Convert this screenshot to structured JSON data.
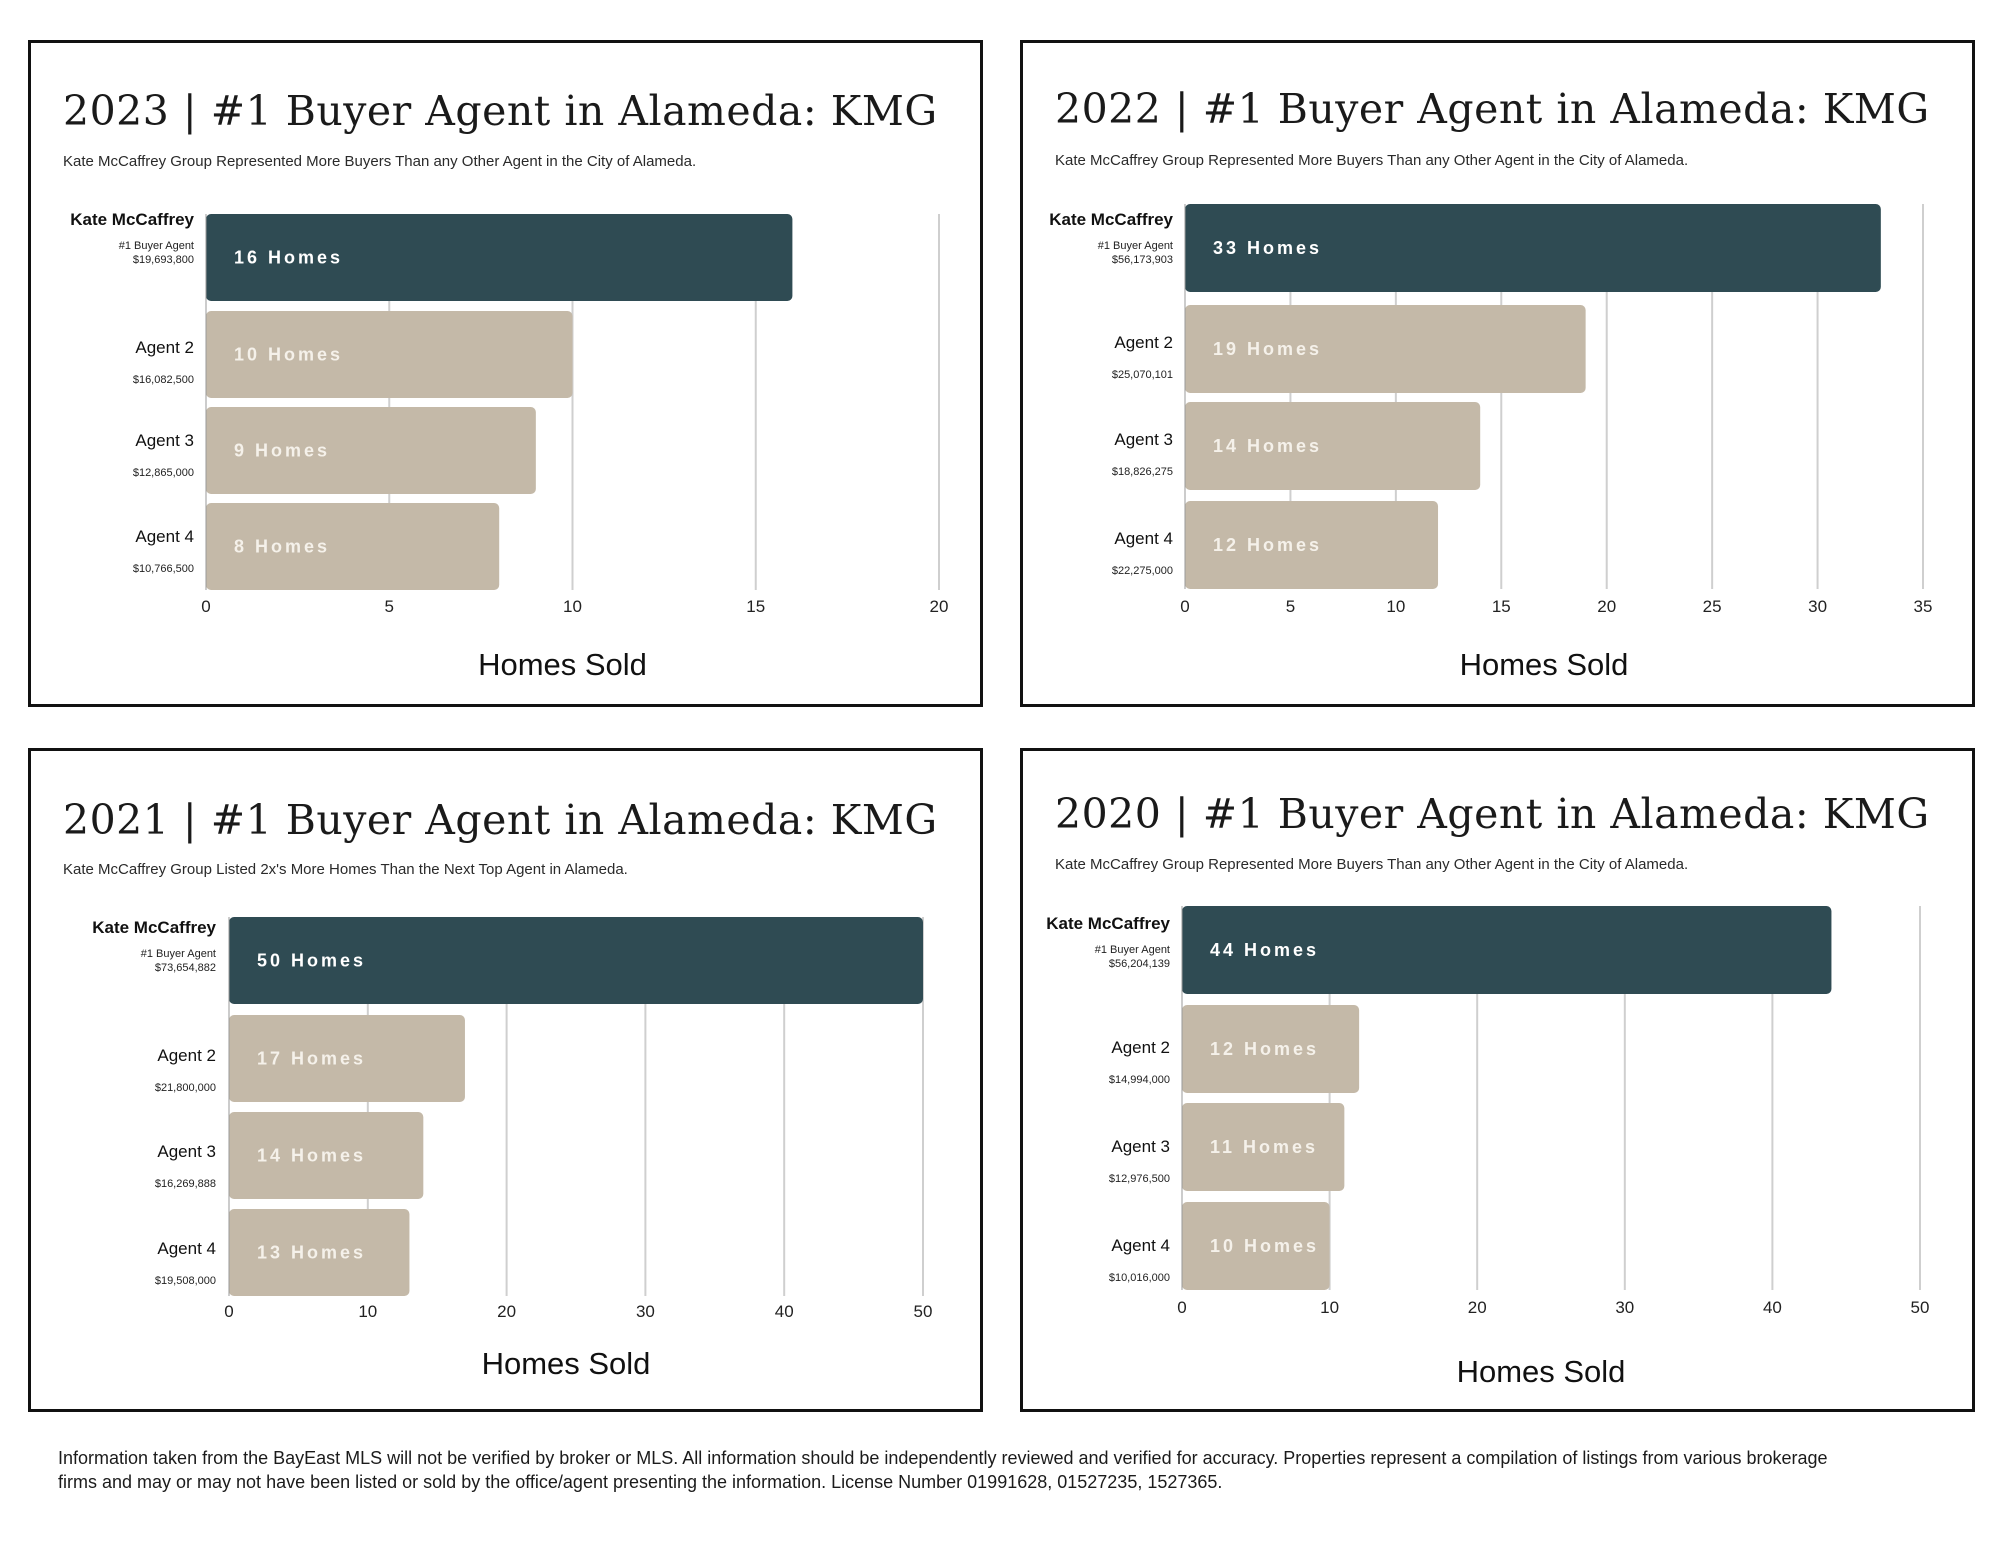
{
  "colors": {
    "top_bar": "#2f4b53",
    "other_bar": "#c4b9a8",
    "top_label": "#ffffff",
    "other_label": "#f5f1ea"
  },
  "footnote": "Information taken from the BayEast MLS will not be verified by broker or MLS. All information should be independently reviewed and verified for accuracy. Properties represent a compilation of listings from various brokerage firms and may or may not have been listed or sold by the office/agent presenting the information. License Number 01991628, 01527235, 1527365.",
  "chart_data": [
    {
      "type": "bar",
      "orientation": "horizontal",
      "title": "2023 | #1 Buyer Agent in Alameda: KMG",
      "subtitle": "Kate McCaffrey Group Represented More Buyers Than any Other Agent in the City of Alameda.",
      "xlabel": "Homes Sold",
      "xlim": [
        0,
        20
      ],
      "ticks": [
        0,
        5,
        10,
        15,
        20
      ],
      "categories": [
        "Kate McCaffrey",
        "Agent 2",
        "Agent 3",
        "Agent 4"
      ],
      "roles": [
        "#1 Buyer Agent",
        "",
        "",
        ""
      ],
      "volumes": [
        "$19,693,800",
        "$16,082,500",
        "$12,865,000",
        "$10,766,500"
      ],
      "values": [
        16,
        10,
        9,
        8
      ],
      "bar_labels": [
        "16 Homes",
        "10 Homes",
        "9 Homes",
        "8 Homes"
      ]
    },
    {
      "type": "bar",
      "orientation": "horizontal",
      "title": "2022 | #1 Buyer Agent in Alameda: KMG",
      "subtitle": "Kate McCaffrey Group Represented More Buyers Than any Other Agent in the City of Alameda.",
      "xlabel": "Homes Sold",
      "xlim": [
        0,
        35
      ],
      "ticks": [
        0,
        5,
        10,
        15,
        20,
        25,
        30,
        35
      ],
      "categories": [
        "Kate McCaffrey",
        "Agent 2",
        "Agent 3",
        "Agent 4"
      ],
      "roles": [
        "#1 Buyer Agent",
        "",
        "",
        ""
      ],
      "volumes": [
        "$56,173,903",
        "$25,070,101",
        "$18,826,275",
        "$22,275,000"
      ],
      "values": [
        33,
        19,
        14,
        12
      ],
      "bar_labels": [
        "33 Homes",
        "19 Homes",
        "14 Homes",
        "12 Homes"
      ]
    },
    {
      "type": "bar",
      "orientation": "horizontal",
      "title": "2021 | #1 Buyer Agent in Alameda: KMG",
      "subtitle": "Kate McCaffrey Group Listed 2x's More Homes Than the Next Top Agent in Alameda.",
      "xlabel": "Homes Sold",
      "xlim": [
        0,
        50
      ],
      "ticks": [
        0,
        10,
        20,
        30,
        40,
        50
      ],
      "categories": [
        "Kate McCaffrey",
        "Agent 2",
        "Agent 3",
        "Agent 4"
      ],
      "roles": [
        "#1 Buyer Agent",
        "",
        "",
        ""
      ],
      "volumes": [
        "$73,654,882",
        "$21,800,000",
        "$16,269,888",
        "$19,508,000"
      ],
      "values": [
        50,
        17,
        14,
        13
      ],
      "bar_labels": [
        "50 Homes",
        "17 Homes",
        "14 Homes",
        "13 Homes"
      ]
    },
    {
      "type": "bar",
      "orientation": "horizontal",
      "title": "2020 | #1 Buyer Agent in Alameda: KMG",
      "subtitle": "Kate McCaffrey Group Represented More Buyers Than any Other Agent in the City of Alameda.",
      "xlabel": "Homes Sold",
      "xlim": [
        0,
        50
      ],
      "ticks": [
        0,
        10,
        20,
        30,
        40,
        50
      ],
      "categories": [
        "Kate McCaffrey",
        "Agent 2",
        "Agent 3",
        "Agent 4"
      ],
      "roles": [
        "#1 Buyer Agent",
        "",
        "",
        ""
      ],
      "volumes": [
        "$56,204,139",
        "$14,994,000",
        "$12,976,500",
        "$10,016,000"
      ],
      "values": [
        44,
        12,
        11,
        10
      ],
      "bar_labels": [
        "44 Homes",
        "12 Homes",
        "11 Homes",
        "10 Homes"
      ]
    }
  ]
}
